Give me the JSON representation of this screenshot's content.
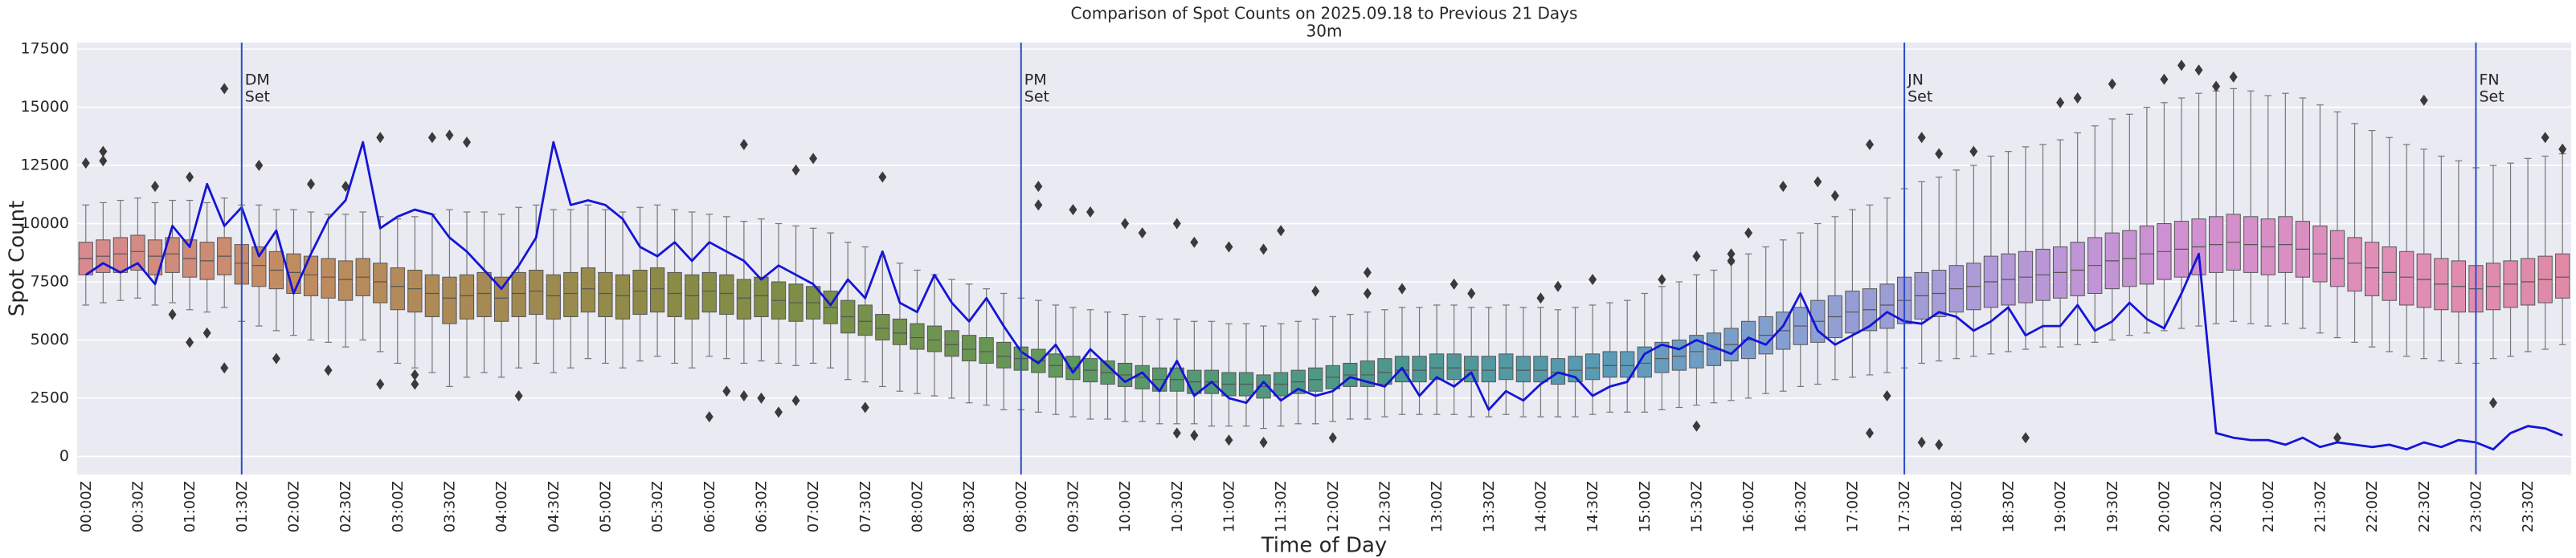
{
  "chart_data": {
    "type": "box",
    "title": "Comparison of Spot Counts on 2025.09.18 to Previous 21 Days",
    "subtitle": "30m",
    "xlabel": "Time of Day",
    "ylabel": "Spot Count",
    "categories": [
      "00:00Z",
      null,
      null,
      "00:30Z",
      null,
      null,
      "01:00Z",
      null,
      null,
      "01:30Z",
      null,
      null,
      "02:00Z",
      null,
      null,
      "02:30Z",
      null,
      null,
      "03:00Z",
      null,
      null,
      "03:30Z",
      null,
      null,
      "04:00Z",
      null,
      null,
      "04:30Z",
      null,
      null,
      "05:00Z",
      null,
      null,
      "05:30Z",
      null,
      null,
      "06:00Z",
      null,
      null,
      "06:30Z",
      null,
      null,
      "07:00Z",
      null,
      null,
      "07:30Z",
      null,
      null,
      "08:00Z",
      null,
      null,
      "08:30Z",
      null,
      null,
      "09:00Z",
      null,
      null,
      "09:30Z",
      null,
      null,
      "10:00Z",
      null,
      null,
      "10:30Z",
      null,
      null,
      "11:00Z",
      null,
      null,
      "11:30Z",
      null,
      null,
      "12:00Z",
      null,
      null,
      "12:30Z",
      null,
      null,
      "13:00Z",
      null,
      null,
      "13:30Z",
      null,
      null,
      "14:00Z",
      null,
      null,
      "14:30Z",
      null,
      null,
      "15:00Z",
      null,
      null,
      "15:30Z",
      null,
      null,
      "16:00Z",
      null,
      null,
      "16:30Z",
      null,
      null,
      "17:00Z",
      null,
      null,
      "17:30Z",
      null,
      null,
      "18:00Z",
      null,
      null,
      "18:30Z",
      null,
      null,
      "19:00Z",
      null,
      null,
      "19:30Z",
      null,
      null,
      "20:00Z",
      null,
      null,
      "20:30Z",
      null,
      null,
      "21:00Z",
      null,
      null,
      "21:30Z",
      null,
      null,
      "22:00Z",
      null,
      null,
      "22:30Z",
      null,
      null,
      "23:00Z",
      null,
      null,
      "23:30Z",
      null,
      null
    ],
    "ylim": [
      -780,
      17780
    ],
    "yticks": [
      0,
      2500,
      5000,
      7500,
      10000,
      12500,
      15000,
      17500
    ],
    "grid": true,
    "palette": [
      "#d98a90",
      "#c48c62",
      "#a98a55",
      "#8c8a46",
      "#789048",
      "#62985a",
      "#52987a",
      "#4c9890",
      "#5a9ab8",
      "#8aa0d2",
      "#b09ad8",
      "#d090d2",
      "#e08eb8",
      "#e08aa6"
    ],
    "boxes": {
      "whislo": [
        6500,
        6600,
        6700,
        6800,
        6500,
        6600,
        6300,
        6200,
        6400,
        5800,
        5600,
        5400,
        5200,
        5000,
        4900,
        4700,
        5000,
        4500,
        4000,
        3800,
        3600,
        3000,
        3400,
        3600,
        3400,
        3800,
        4000,
        3600,
        3800,
        4200,
        4000,
        3800,
        4100,
        4300,
        4000,
        3800,
        4300,
        4200,
        4000,
        4100,
        4000,
        3900,
        4000,
        3800,
        3300,
        3200,
        3000,
        2800,
        2700,
        2600,
        2500,
        2300,
        2200,
        2000,
        2000,
        1900,
        1800,
        1700,
        1600,
        1600,
        1500,
        1500,
        1400,
        1400,
        1400,
        1300,
        1300,
        1300,
        1200,
        1300,
        1400,
        1400,
        1500,
        1600,
        1600,
        1700,
        1800,
        1800,
        1800,
        1800,
        1700,
        1700,
        1800,
        1700,
        1700,
        1700,
        1700,
        1800,
        1900,
        1900,
        1900,
        2000,
        2100,
        2200,
        2300,
        2400,
        2500,
        2700,
        2800,
        3000,
        3100,
        3300,
        3400,
        3500,
        3600,
        3800,
        4000,
        4100,
        4200,
        4300,
        4400,
        4500,
        4600,
        4700,
        4700,
        4800,
        4900,
        5000,
        5200,
        5300,
        5400,
        5500,
        5600,
        5700,
        5800,
        5700,
        5600,
        5700,
        5500,
        5300,
        5100,
        4900,
        4700,
        4500,
        4300,
        4200,
        4100,
        4000,
        4000,
        4200,
        4300,
        4500,
        4600,
        4800
      ],
      "q1": [
        7800,
        7900,
        7900,
        8000,
        7800,
        7900,
        7700,
        7600,
        7800,
        7400,
        7300,
        7200,
        7000,
        6900,
        6800,
        6700,
        6900,
        6600,
        6300,
        6200,
        6000,
        5700,
        5900,
        6000,
        5800,
        6000,
        6100,
        5900,
        6000,
        6200,
        6000,
        5900,
        6100,
        6200,
        6000,
        5900,
        6200,
        6100,
        5900,
        6000,
        5900,
        5800,
        5900,
        5700,
        5300,
        5200,
        5000,
        4800,
        4600,
        4500,
        4300,
        4100,
        4000,
        3800,
        3700,
        3600,
        3400,
        3300,
        3200,
        3100,
        3000,
        2900,
        2800,
        2800,
        2700,
        2700,
        2600,
        2600,
        2500,
        2600,
        2700,
        2800,
        2900,
        3000,
        3000,
        3100,
        3200,
        3200,
        3300,
        3300,
        3200,
        3200,
        3300,
        3200,
        3200,
        3100,
        3200,
        3300,
        3400,
        3400,
        3400,
        3600,
        3700,
        3800,
        3900,
        4100,
        4200,
        4400,
        4600,
        4800,
        4900,
        5100,
        5300,
        5400,
        5500,
        5700,
        5900,
        6000,
        6200,
        6300,
        6400,
        6500,
        6600,
        6700,
        6800,
        6900,
        7000,
        7200,
        7300,
        7400,
        7600,
        7700,
        7800,
        7900,
        8000,
        7900,
        7800,
        7900,
        7700,
        7500,
        7300,
        7100,
        6900,
        6700,
        6500,
        6400,
        6300,
        6200,
        6200,
        6300,
        6400,
        6500,
        6600,
        6800
      ],
      "med": [
        8500,
        8600,
        8700,
        8800,
        8600,
        8700,
        8500,
        8400,
        8600,
        8300,
        8200,
        8000,
        7900,
        7800,
        7700,
        7600,
        7700,
        7500,
        7300,
        7200,
        7000,
        6800,
        6900,
        7000,
        6800,
        7000,
        7100,
        6900,
        7000,
        7200,
        7000,
        6900,
        7100,
        7200,
        7000,
        6900,
        7100,
        7000,
        6800,
        6900,
        6700,
        6600,
        6600,
        6400,
        6000,
        5800,
        5500,
        5300,
        5100,
        5000,
        4800,
        4600,
        4500,
        4300,
        4200,
        4100,
        3900,
        3800,
        3700,
        3600,
        3500,
        3400,
        3300,
        3300,
        3200,
        3200,
        3100,
        3100,
        3000,
        3100,
        3200,
        3300,
        3400,
        3500,
        3500,
        3600,
        3700,
        3700,
        3800,
        3800,
        3700,
        3700,
        3800,
        3700,
        3700,
        3600,
        3700,
        3800,
        3900,
        3900,
        4000,
        4200,
        4300,
        4500,
        4600,
        4800,
        5000,
        5200,
        5400,
        5600,
        5800,
        6000,
        6200,
        6300,
        6500,
        6700,
        6900,
        7000,
        7200,
        7300,
        7500,
        7600,
        7700,
        7800,
        7900,
        8000,
        8200,
        8400,
        8500,
        8700,
        8800,
        8900,
        9000,
        9100,
        9200,
        9100,
        9000,
        9100,
        8900,
        8700,
        8500,
        8300,
        8100,
        7900,
        7700,
        7600,
        7400,
        7300,
        7200,
        7300,
        7400,
        7500,
        7600,
        7700
      ],
      "q3": [
        9200,
        9300,
        9400,
        9500,
        9300,
        9400,
        9300,
        9200,
        9400,
        9100,
        9000,
        8800,
        8700,
        8600,
        8500,
        8400,
        8500,
        8300,
        8100,
        8000,
        7800,
        7700,
        7800,
        7900,
        7700,
        7900,
        8000,
        7800,
        7900,
        8100,
        7900,
        7800,
        8000,
        8100,
        7900,
        7800,
        7900,
        7800,
        7600,
        7700,
        7500,
        7400,
        7300,
        7100,
        6700,
        6500,
        6100,
        5900,
        5700,
        5600,
        5400,
        5200,
        5100,
        4900,
        4700,
        4600,
        4400,
        4300,
        4200,
        4100,
        4000,
        3900,
        3800,
        3800,
        3700,
        3700,
        3600,
        3600,
        3500,
        3600,
        3700,
        3800,
        3900,
        4000,
        4100,
        4200,
        4300,
        4300,
        4400,
        4400,
        4300,
        4300,
        4400,
        4300,
        4300,
        4200,
        4300,
        4400,
        4500,
        4500,
        4700,
        4900,
        5000,
        5200,
        5300,
        5500,
        5800,
        6000,
        6200,
        6400,
        6700,
        6900,
        7100,
        7200,
        7400,
        7700,
        7900,
        8000,
        8200,
        8300,
        8600,
        8700,
        8800,
        8900,
        9000,
        9200,
        9400,
        9600,
        9700,
        9900,
        10000,
        10100,
        10200,
        10300,
        10400,
        10300,
        10200,
        10300,
        10100,
        9900,
        9700,
        9400,
        9200,
        9000,
        8800,
        8700,
        8500,
        8400,
        8200,
        8300,
        8400,
        8500,
        8600,
        8700
      ],
      "whishi": [
        10800,
        10900,
        11000,
        11100,
        10900,
        11000,
        11000,
        10900,
        11100,
        10800,
        10800,
        10600,
        10600,
        10500,
        10400,
        10400,
        10500,
        10300,
        10200,
        10300,
        10400,
        10600,
        10500,
        10500,
        10400,
        10700,
        10800,
        10600,
        10600,
        10800,
        10600,
        10500,
        10700,
        10800,
        10600,
        10500,
        10400,
        10300,
        10100,
        10200,
        10000,
        9900,
        9800,
        9600,
        9200,
        9000,
        8600,
        8300,
        8000,
        7800,
        7600,
        7400,
        7200,
        7000,
        6800,
        6700,
        6500,
        6400,
        6300,
        6200,
        6100,
        6000,
        5900,
        5900,
        5800,
        5800,
        5700,
        5700,
        5600,
        5700,
        5800,
        5900,
        6000,
        6100,
        6200,
        6300,
        6400,
        6400,
        6500,
        6500,
        6400,
        6400,
        6500,
        6400,
        6400,
        6300,
        6400,
        6500,
        6600,
        6700,
        7000,
        7300,
        7500,
        7800,
        8000,
        8300,
        8700,
        9000,
        9300,
        9600,
        10000,
        10300,
        10600,
        10800,
        11100,
        11500,
        11800,
        12000,
        12300,
        12500,
        12900,
        13100,
        13300,
        13400,
        13600,
        13900,
        14200,
        14500,
        14700,
        15000,
        15200,
        15400,
        15600,
        15700,
        15800,
        15700,
        15500,
        15600,
        15400,
        15100,
        14800,
        14300,
        14000,
        13700,
        13400,
        13200,
        12900,
        12700,
        12400,
        12500,
        12600,
        12800,
        12900,
        13000
      ],
      "fliers": [
        [
          12600
        ],
        [
          13100,
          12700
        ],
        [],
        [],
        [
          11600
        ],
        [
          6100
        ],
        [
          12000,
          4900
        ],
        [
          5300
        ],
        [
          15800,
          3800
        ],
        [],
        [
          12500
        ],
        [
          4200
        ],
        [],
        [
          11700
        ],
        [
          3700
        ],
        [
          11600
        ],
        [],
        [
          13700,
          3100
        ],
        [],
        [
          3500,
          3100
        ],
        [
          13700
        ],
        [
          13800
        ],
        [
          13500
        ],
        [],
        [],
        [
          2600
        ],
        [],
        [],
        [],
        [],
        [],
        [],
        [],
        [],
        [],
        [],
        [
          1700
        ],
        [
          2800
        ],
        [
          2600,
          13400
        ],
        [
          2500
        ],
        [
          1900
        ],
        [
          12300,
          2400
        ],
        [
          12800
        ],
        [],
        [],
        [
          2100
        ],
        [
          12000
        ],
        [],
        [],
        [],
        [],
        [],
        [],
        [],
        [],
        [
          11600,
          10800
        ],
        [],
        [
          10600
        ],
        [
          10500
        ],
        [],
        [
          10000
        ],
        [
          9600
        ],
        [],
        [
          10000,
          1000
        ],
        [
          9200,
          900
        ],
        [],
        [
          9000,
          700
        ],
        [],
        [
          8900,
          600
        ],
        [
          9700
        ],
        [],
        [
          7100
        ],
        [
          800
        ],
        [],
        [
          7900,
          7000
        ],
        [],
        [
          7200
        ],
        [],
        [],
        [
          7400
        ],
        [
          7000
        ],
        [],
        [],
        [],
        [
          6800
        ],
        [
          7300
        ],
        [],
        [
          7600
        ],
        [],
        [],
        [],
        [
          7600
        ],
        [],
        [
          8600,
          1300
        ],
        [],
        [
          8700,
          8400
        ],
        [
          9600
        ],
        [],
        [
          11600
        ],
        [],
        [
          11800
        ],
        [
          11200
        ],
        [],
        [
          13400,
          1000
        ],
        [
          2600
        ],
        [],
        [
          13700,
          600
        ],
        [
          13000,
          500
        ],
        [],
        [
          13100
        ],
        [],
        [],
        [
          800
        ],
        [],
        [
          15200
        ],
        [
          15400
        ],
        [],
        [
          16000
        ],
        [],
        [],
        [
          16200
        ],
        [
          16800
        ],
        [
          16600
        ],
        [
          15900
        ],
        [
          16300
        ],
        [],
        [],
        [],
        [],
        [],
        [
          800
        ],
        [],
        [],
        [],
        [],
        [
          15300
        ],
        [],
        [],
        [],
        [
          2300
        ],
        [],
        [],
        [
          13700
        ],
        [
          13200
        ]
      ]
    },
    "series": [
      {
        "color": "#1414d8",
        "values": [
          7800,
          8300,
          7900,
          8300,
          7400,
          9900,
          9000,
          11700,
          9900,
          10700,
          8600,
          9700,
          7000,
          8700,
          10200,
          11000,
          13500,
          9800,
          10300,
          10600,
          10400,
          9400,
          8800,
          8000,
          7200,
          8200,
          9400,
          13500,
          10800,
          11000,
          10800,
          10200,
          9000,
          8600,
          9200,
          8400,
          9200,
          8800,
          8400,
          7600,
          8200,
          7800,
          7400,
          6500,
          7600,
          6800,
          8800,
          6600,
          6200,
          7800,
          6600,
          5800,
          6800,
          5600,
          4500,
          4000,
          4800,
          3600,
          4600,
          3900,
          3200,
          3600,
          2800,
          4100,
          2600,
          3200,
          2500,
          2300,
          3200,
          2400,
          2900,
          2600,
          2800,
          3400,
          3200,
          3000,
          3800,
          2600,
          3400,
          3000,
          3600,
          2000,
          2800,
          2400,
          3100,
          3600,
          3400,
          2600,
          3000,
          3200,
          4400,
          4800,
          4600,
          5000,
          4700,
          4400,
          5100,
          4800,
          5600,
          7000,
          5400,
          4800,
          5200,
          5600,
          6200,
          5800,
          5700,
          6200,
          6000,
          5400,
          5800,
          6400,
          5200,
          5600,
          5600,
          6500,
          5400,
          5800,
          6600,
          5900,
          5500,
          7000,
          8700,
          1000,
          800,
          700,
          700,
          500,
          800,
          400,
          600,
          500,
          400,
          500,
          300,
          600,
          400,
          700,
          600,
          300,
          1000,
          1300,
          1200,
          900
        ]
      }
    ],
    "annotations": [
      {
        "x": "01:30Z",
        "lines": [
          "DM",
          "Set"
        ],
        "color": "#2a4cc8"
      },
      {
        "x": "09:00Z",
        "lines": [
          "PM",
          "Set"
        ],
        "color": "#2a4cc8"
      },
      {
        "x": "17:30Z",
        "lines": [
          "JN",
          "Set"
        ],
        "color": "#2a4cc8"
      },
      {
        "x": "23:00Z",
        "lines": [
          "FN",
          "Set"
        ],
        "color": "#2a4cc8"
      }
    ]
  }
}
